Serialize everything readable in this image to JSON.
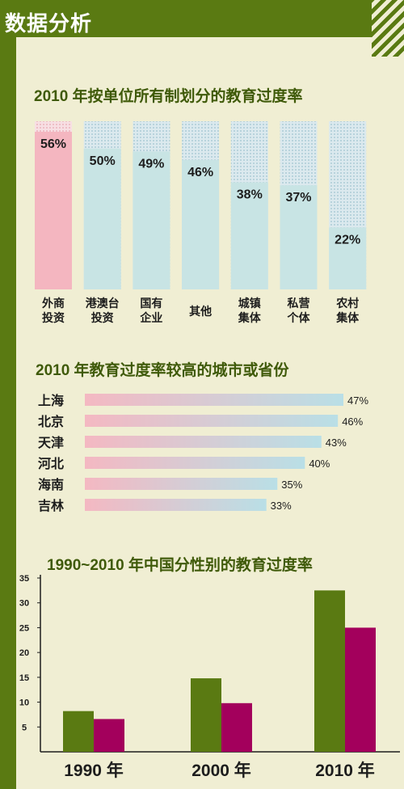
{
  "page_title": "数据分析",
  "chart_data": [
    {
      "type": "bar",
      "title": "2010 年按单位所有制划分的教育过度率",
      "categories": [
        "外商\n投资",
        "港澳台\n投资",
        "国有\n企业",
        "其他",
        "城镇\n集体",
        "私营\n个体",
        "农村\n集体"
      ],
      "values": [
        56,
        50,
        49,
        46,
        38,
        37,
        22
      ],
      "value_labels": [
        "56%",
        "50%",
        "49%",
        "46%",
        "38%",
        "37%",
        "22%"
      ],
      "ylim": [
        0,
        56
      ],
      "grid": false,
      "colors": {
        "highlight": "#f4b6c0",
        "normal": "#c8e4e4",
        "track": "#dbe9ee"
      }
    },
    {
      "type": "bar",
      "orientation": "horizontal",
      "title": "2010 年教育过度率较高的城市或省份",
      "categories": [
        "上海",
        "北京",
        "天津",
        "河北",
        "海南",
        "吉林"
      ],
      "values": [
        47,
        46,
        43,
        40,
        35,
        33
      ],
      "value_labels": [
        "47%",
        "46%",
        "43%",
        "40%",
        "35%",
        "33%"
      ],
      "grid": false,
      "colors": {
        "start": "#f4b8c2",
        "end": "#b9dfe6"
      }
    },
    {
      "type": "bar",
      "title": "1990~2010 年中国分性别的教育过度率",
      "categories": [
        "1990 年",
        "2000 年",
        "2010 年"
      ],
      "series": [
        {
          "values": [
            8.2,
            14.8,
            32.5
          ],
          "color": "#5a7a12"
        },
        {
          "values": [
            6.6,
            9.8,
            25.0
          ],
          "color": "#a3005c"
        }
      ],
      "ylim": [
        0,
        35
      ],
      "yticks": [
        5,
        10,
        15,
        20,
        25,
        30,
        35
      ],
      "grid": false
    }
  ]
}
